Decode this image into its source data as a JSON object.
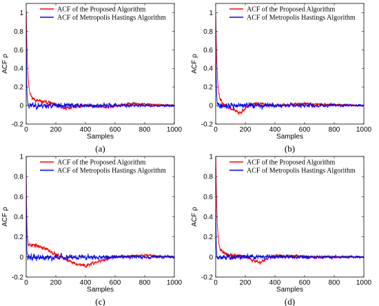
{
  "chart_data": [
    {
      "type": "line",
      "caption": "(a)",
      "xlabel": "Samples",
      "ylabel": "ACF ρ",
      "xlim": [
        0,
        1000
      ],
      "ylim": [
        -0.2,
        1.1
      ],
      "xticks": [
        "0",
        "200",
        "400",
        "600",
        "800",
        "1000"
      ],
      "yticks": [
        "-0.2",
        "0",
        "0.2",
        "0.4",
        "0.6",
        "0.8",
        "1"
      ],
      "legend_position": "top-right",
      "series": [
        {
          "name": "ACF of the Proposed Algorithm",
          "color": "#ff0000",
          "profile": {
            "peak": 1.0,
            "decay_lag": 8,
            "tail": 0.14,
            "tail_decay": 45,
            "noise": 0.03,
            "drift": [
              [
                0,
                0.02
              ],
              [
                150,
                0.03
              ],
              [
                250,
                -0.03
              ],
              [
                400,
                0.0
              ],
              [
                550,
                -0.02
              ],
              [
                700,
                0.02
              ],
              [
                1000,
                0.0
              ]
            ],
            "seed": 11
          }
        },
        {
          "name": "ACF of  Metropolis Hastings Algorithm",
          "color": "#0000ff",
          "profile": {
            "peak": 1.0,
            "decay_lag": 3,
            "tail": 0.0,
            "tail_decay": 10,
            "noise": 0.045,
            "drift": [
              [
                0,
                0.0
              ],
              [
                1000,
                0.0
              ]
            ],
            "seed": 23
          }
        }
      ]
    },
    {
      "type": "line",
      "caption": "(b)",
      "xlabel": "Samples",
      "ylabel": "ACF ρ",
      "xlim": [
        0,
        1000
      ],
      "ylim": [
        -0.2,
        1.1
      ],
      "xticks": [
        "0",
        "200",
        "400",
        "600",
        "800",
        "1000"
      ],
      "yticks": [
        "-0.2",
        "0",
        "0.2",
        "0.4",
        "0.6",
        "0.8",
        "1"
      ],
      "legend_position": "top-right",
      "series": [
        {
          "name": "ACF of the Proposed Algorithm",
          "color": "#ff0000",
          "profile": {
            "peak": 1.0,
            "decay_lag": 8,
            "tail": 0.1,
            "tail_decay": 40,
            "noise": 0.03,
            "drift": [
              [
                0,
                0.02
              ],
              [
                160,
                -0.08
              ],
              [
                250,
                0.02
              ],
              [
                400,
                0.0
              ],
              [
                600,
                0.02
              ],
              [
                1000,
                0.0
              ]
            ],
            "seed": 37
          }
        },
        {
          "name": "ACF of  Metropolis Hastings Algorithm",
          "color": "#0000ff",
          "profile": {
            "peak": 1.0,
            "decay_lag": 3,
            "tail": 0.0,
            "tail_decay": 10,
            "noise": 0.045,
            "drift": [
              [
                0,
                0.0
              ],
              [
                1000,
                0.0
              ]
            ],
            "seed": 41
          }
        }
      ]
    },
    {
      "type": "line",
      "caption": "(c)",
      "xlabel": "Samples",
      "ylabel": "ACF ρ",
      "xlim": [
        0,
        1000
      ],
      "ylim": [
        -0.2,
        1.0
      ],
      "xticks": [
        "0",
        "200",
        "400",
        "600",
        "800",
        "1000"
      ],
      "yticks": [
        "-0.2",
        "0",
        "0.2",
        "0.4",
        "0.6",
        "0.8",
        "1"
      ],
      "legend_position": "top-right",
      "series": [
        {
          "name": "ACF of the Proposed Algorithm",
          "color": "#ff0000",
          "profile": {
            "peak": 1.0,
            "decay_lag": 4,
            "tail": 0.0,
            "tail_decay": 10,
            "noise": 0.03,
            "drift": [
              [
                0,
                0.13
              ],
              [
                100,
                0.1
              ],
              [
                200,
                0.03
              ],
              [
                300,
                -0.05
              ],
              [
                400,
                -0.09
              ],
              [
                500,
                -0.04
              ],
              [
                600,
                0.0
              ],
              [
                800,
                0.02
              ],
              [
                1000,
                0.0
              ]
            ],
            "seed": 53
          }
        },
        {
          "name": "ACF of  Metropolis Hastings Algorithm",
          "color": "#0000ff",
          "profile": {
            "peak": 1.0,
            "decay_lag": 2,
            "tail": 0.0,
            "tail_decay": 10,
            "noise": 0.045,
            "drift": [
              [
                0,
                0.0
              ],
              [
                1000,
                0.0
              ]
            ],
            "seed": 59
          }
        }
      ]
    },
    {
      "type": "line",
      "caption": "(d)",
      "xlabel": "Samples",
      "ylabel": "ACF ρ",
      "xlim": [
        0,
        1000
      ],
      "ylim": [
        -0.2,
        1.0
      ],
      "xticks": [
        "0",
        "200",
        "400",
        "600",
        "800",
        "1000"
      ],
      "yticks": [
        "-0.2",
        "0",
        "0.2",
        "0.4",
        "0.6",
        "0.8",
        "1"
      ],
      "legend_position": "top-right",
      "series": [
        {
          "name": "ACF of the Proposed Algorithm",
          "color": "#ff0000",
          "profile": {
            "peak": 1.0,
            "decay_lag": 8,
            "tail": 0.1,
            "tail_decay": 40,
            "noise": 0.03,
            "drift": [
              [
                0,
                0.02
              ],
              [
                200,
                0.0
              ],
              [
                300,
                -0.06
              ],
              [
                400,
                0.02
              ],
              [
                600,
                0.0
              ],
              [
                1000,
                0.0
              ]
            ],
            "seed": 71
          }
        },
        {
          "name": "ACF of  Metropolis Hastings Algorithm",
          "color": "#0000ff",
          "profile": {
            "peak": 1.0,
            "decay_lag": 2,
            "tail": 0.0,
            "tail_decay": 10,
            "noise": 0.04,
            "drift": [
              [
                0,
                0.0
              ],
              [
                1000,
                0.0
              ]
            ],
            "seed": 79
          }
        }
      ]
    }
  ]
}
